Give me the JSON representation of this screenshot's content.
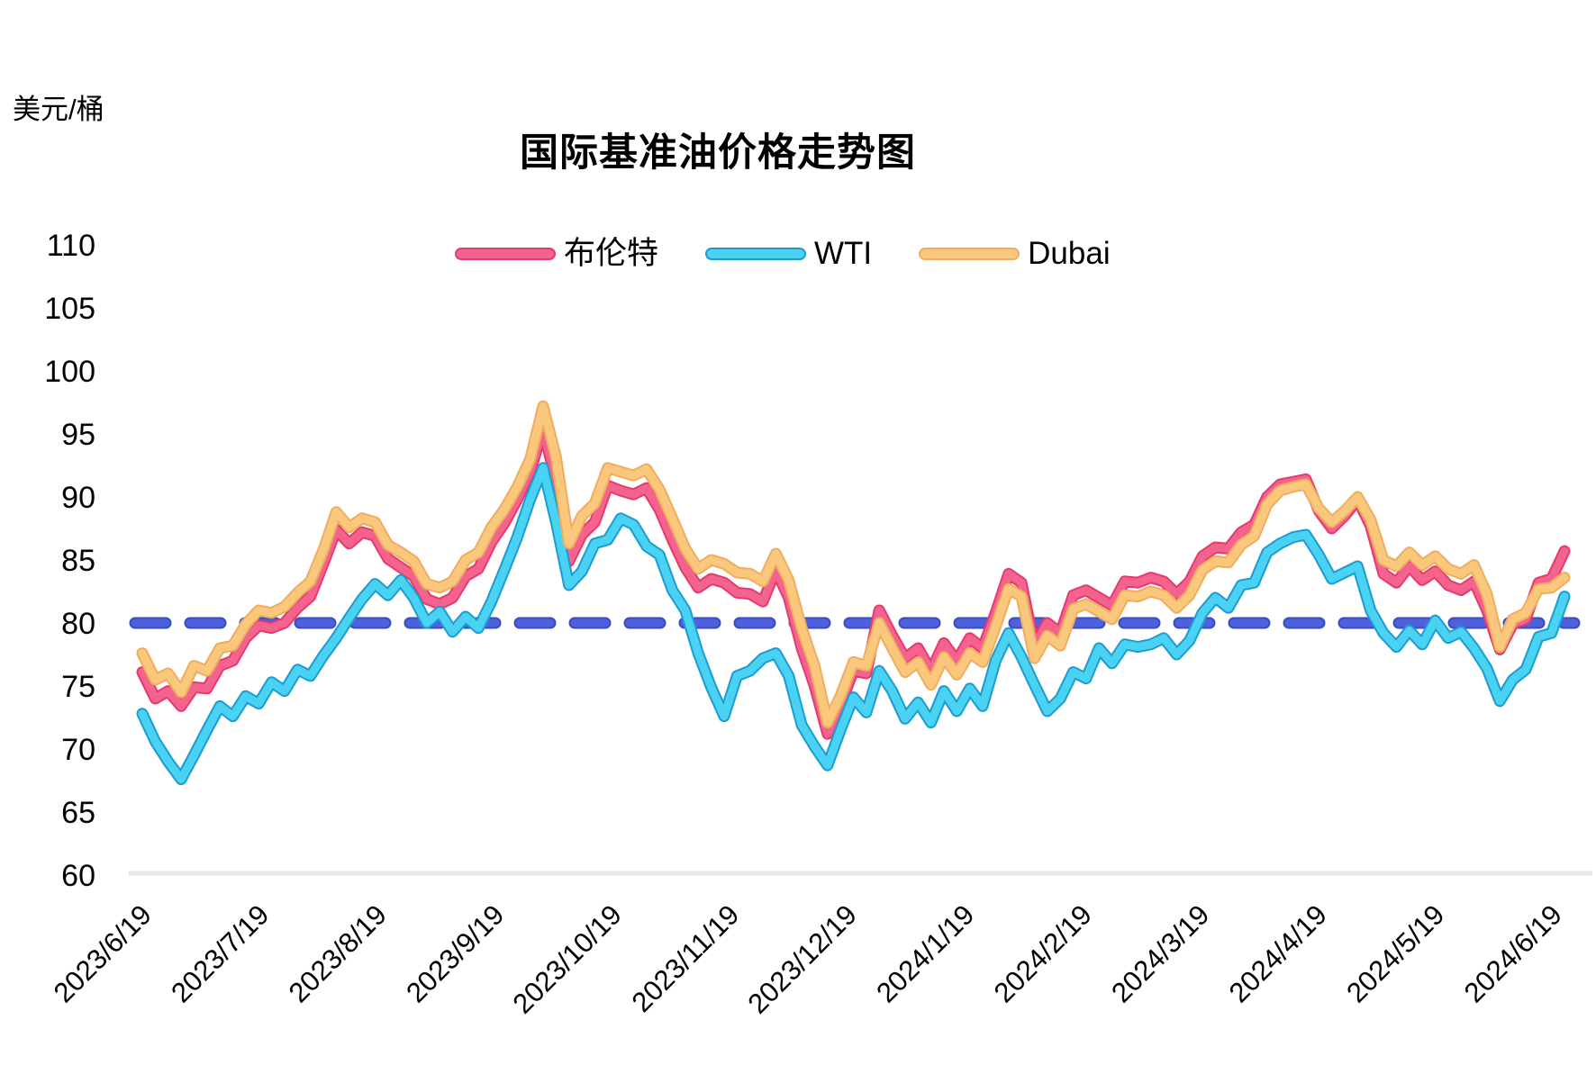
{
  "title": "国际基准油价格走势图",
  "y_axis": {
    "unit_label": "美元/桶",
    "ticks": [
      110,
      105,
      100,
      95,
      90,
      85,
      80,
      75,
      70,
      65,
      60
    ],
    "min": 60,
    "max": 110
  },
  "x_axis": {
    "tick_labels": [
      "2023/6/19",
      "2023/7/19",
      "2023/8/19",
      "2023/9/19",
      "2023/10/19",
      "2023/11/19",
      "2023/12/19",
      "2024/1/19",
      "2024/2/19",
      "2024/3/19",
      "2024/4/19",
      "2024/5/19",
      "2024/6/19"
    ]
  },
  "legend": {
    "items": [
      {
        "label": "布伦特",
        "fill": "#F4638E",
        "edge": "#E73A6B"
      },
      {
        "label": "WTI",
        "fill": "#49D2F2",
        "edge": "#1B9CD3"
      },
      {
        "label": "Dubai",
        "fill": "#F9C87C",
        "edge": "#EFAD5F"
      }
    ]
  },
  "reference_line": {
    "value": 80,
    "fill": "#4E60DC",
    "edge": "#3A4BC8",
    "style": "dashed"
  },
  "baseline_color": "#EBE4E4",
  "chart_data": {
    "type": "line",
    "title": "国际基准油价格走势图",
    "ylabel": "美元/桶",
    "ylim": [
      60,
      110
    ],
    "grid": false,
    "legend_position": "top",
    "x_start": "2023/6/19",
    "x_end": "2024/6/19",
    "x_note": "values evenly spaced in time from x_start to x_end (daily prices read off chart, ~3-day sampling)",
    "reference_value": 80,
    "series": [
      {
        "name": "布伦特",
        "color": "#F4638E",
        "values": [
          76.1,
          74.0,
          74.6,
          73.4,
          74.9,
          74.8,
          76.6,
          77.0,
          78.8,
          79.8,
          79.6,
          80.0,
          81.2,
          82.1,
          84.7,
          87.4,
          86.3,
          87.2,
          86.9,
          85.1,
          84.4,
          83.7,
          81.9,
          81.5,
          82.0,
          83.7,
          84.3,
          86.4,
          87.9,
          89.8,
          92.0,
          95.4,
          91.3,
          84.9,
          87.0,
          88.0,
          90.9,
          90.5,
          90.2,
          90.7,
          89.0,
          86.6,
          84.4,
          82.8,
          83.5,
          83.2,
          82.4,
          82.3,
          81.7,
          84.2,
          82.0,
          78.0,
          75.0,
          71.2,
          73.5,
          76.2,
          76.0,
          81.0,
          79.0,
          77.2,
          78.0,
          76.2,
          78.4,
          77.0,
          78.8,
          78.0,
          80.8,
          83.9,
          83.2,
          78.2,
          80.0,
          79.2,
          82.2,
          82.6,
          82.0,
          81.4,
          83.3,
          83.2,
          83.6,
          83.3,
          82.3,
          83.3,
          85.3,
          86.0,
          85.9,
          87.2,
          87.8,
          90.0,
          91.0,
          91.2,
          91.4,
          88.9,
          87.5,
          88.5,
          89.8,
          87.7,
          83.9,
          83.2,
          84.5,
          83.4,
          84.1,
          83.0,
          82.6,
          83.3,
          81.0,
          77.9,
          79.9,
          80.3,
          83.2,
          83.5,
          85.7
        ]
      },
      {
        "name": "WTI",
        "color": "#49D2F2",
        "values": [
          72.8,
          70.6,
          69.0,
          67.6,
          69.5,
          71.5,
          73.4,
          72.6,
          74.2,
          73.6,
          75.3,
          74.6,
          76.3,
          75.8,
          77.4,
          78.8,
          80.4,
          81.9,
          83.1,
          82.2,
          83.4,
          82.0,
          80.0,
          80.9,
          79.3,
          80.5,
          79.6,
          81.7,
          84.2,
          86.8,
          89.8,
          92.3,
          88.0,
          83.0,
          84.1,
          86.3,
          86.6,
          88.3,
          87.8,
          86.1,
          85.4,
          82.6,
          81.0,
          77.6,
          74.9,
          72.6,
          75.8,
          76.2,
          77.2,
          77.6,
          75.8,
          71.9,
          70.2,
          68.7,
          71.5,
          74.1,
          72.9,
          76.2,
          74.6,
          72.4,
          73.7,
          72.1,
          74.6,
          73.0,
          74.8,
          73.4,
          77.0,
          79.2,
          77.3,
          75.1,
          73.0,
          74.0,
          76.1,
          75.6,
          78.0,
          76.8,
          78.3,
          78.1,
          78.3,
          78.8,
          77.5,
          78.6,
          80.8,
          82.0,
          81.2,
          83.0,
          83.2,
          85.6,
          86.3,
          86.8,
          87.0,
          85.4,
          83.5,
          84.0,
          84.5,
          81.0,
          79.2,
          78.1,
          79.4,
          78.3,
          80.2,
          78.8,
          79.3,
          78.0,
          76.4,
          73.8,
          75.5,
          76.3,
          78.9,
          79.2,
          82.1
        ]
      },
      {
        "name": "Dubai",
        "color": "#F9C87C",
        "values": [
          77.6,
          75.5,
          76.0,
          74.5,
          76.6,
          76.2,
          78.0,
          78.2,
          79.9,
          81.0,
          80.8,
          81.3,
          82.4,
          83.3,
          85.8,
          88.8,
          87.6,
          88.3,
          88.0,
          86.2,
          85.6,
          84.9,
          83.1,
          82.8,
          83.3,
          85.0,
          85.6,
          87.6,
          89.0,
          90.8,
          93.0,
          97.2,
          93.2,
          86.3,
          88.5,
          89.5,
          92.3,
          92.0,
          91.7,
          92.2,
          90.6,
          88.3,
          85.9,
          84.3,
          85.0,
          84.7,
          84.0,
          83.9,
          83.3,
          85.5,
          83.4,
          79.6,
          76.6,
          72.1,
          74.2,
          76.9,
          76.6,
          80.0,
          78.0,
          76.1,
          76.9,
          75.1,
          77.3,
          75.9,
          77.6,
          76.9,
          79.7,
          82.7,
          82.1,
          77.2,
          79.0,
          78.2,
          81.1,
          81.5,
          80.9,
          80.3,
          82.2,
          82.1,
          82.5,
          82.2,
          81.2,
          82.2,
          84.2,
          84.9,
          84.8,
          86.2,
          86.9,
          89.4,
          90.5,
          90.8,
          91.0,
          89.1,
          88.0,
          88.9,
          90.0,
          88.2,
          85.0,
          84.5,
          85.6,
          84.6,
          85.3,
          84.3,
          83.9,
          84.6,
          82.3,
          78.1,
          80.3,
          80.8,
          82.7,
          82.8,
          83.6
        ]
      }
    ]
  }
}
